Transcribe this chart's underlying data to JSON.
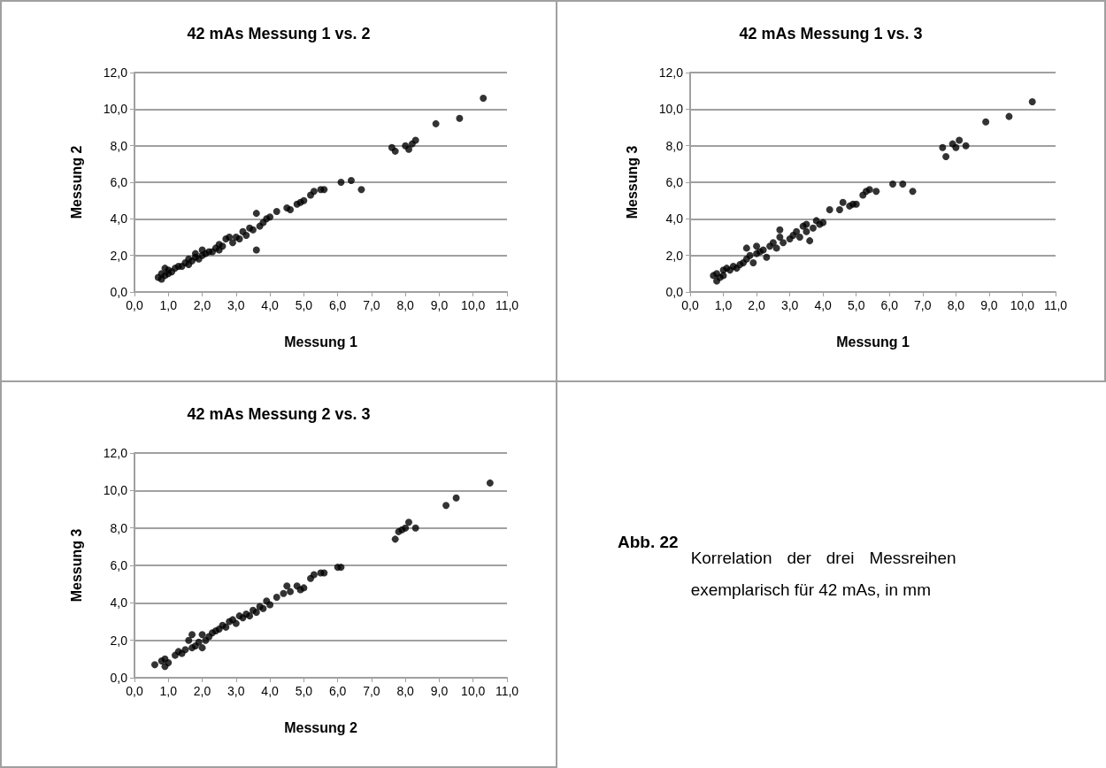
{
  "chart_data": [
    {
      "type": "scatter",
      "title": "42 mAs Messung 1 vs. 2",
      "xlabel": "Messung 1",
      "ylabel": "Messung 2",
      "marker": "circle",
      "grid": "y",
      "xlim": [
        0,
        11
      ],
      "xticks": [
        {
          "value": 0,
          "label": "0,0"
        },
        {
          "value": 1,
          "label": "1,0"
        },
        {
          "value": 2,
          "label": "2,0"
        },
        {
          "value": 3,
          "label": "3,0"
        },
        {
          "value": 4,
          "label": "4,0"
        },
        {
          "value": 5,
          "label": "5,0"
        },
        {
          "value": 6,
          "label": "6,0"
        },
        {
          "value": 7,
          "label": "7,0"
        },
        {
          "value": 8,
          "label": "8,0"
        },
        {
          "value": 9,
          "label": "9,0"
        },
        {
          "value": 10,
          "label": "10,0"
        },
        {
          "value": 11,
          "label": "11,0"
        }
      ],
      "ylim": [
        0,
        12
      ],
      "yticks": [
        {
          "value": 0,
          "label": "0,0"
        },
        {
          "value": 2,
          "label": "2,0"
        },
        {
          "value": 4,
          "label": "4,0"
        },
        {
          "value": 6,
          "label": "6,0"
        },
        {
          "value": 8,
          "label": "8,0"
        },
        {
          "value": 10,
          "label": "10,0"
        },
        {
          "value": 12,
          "label": "12,0"
        }
      ],
      "series": [
        {
          "color": "#000000",
          "x": [
            0.7,
            0.8,
            0.8,
            0.9,
            0.9,
            1.0,
            1.0,
            1.1,
            1.2,
            1.3,
            1.4,
            1.5,
            1.6,
            1.6,
            1.7,
            1.8,
            1.8,
            1.9,
            2.0,
            2.0,
            2.1,
            2.2,
            2.3,
            2.4,
            2.5,
            2.5,
            2.6,
            2.7,
            2.8,
            2.9,
            3.0,
            3.1,
            3.2,
            3.3,
            3.4,
            3.5,
            3.6,
            3.6,
            3.7,
            3.8,
            3.9,
            4.0,
            4.2,
            4.5,
            4.6,
            4.8,
            4.9,
            5.0,
            5.2,
            5.3,
            5.5,
            5.6,
            6.1,
            6.4,
            6.7,
            7.6,
            7.7,
            8.0,
            8.1,
            8.2,
            8.3,
            8.9,
            9.6,
            10.3
          ],
          "values": [
            0.8,
            0.7,
            1.0,
            0.9,
            1.3,
            1.0,
            1.2,
            1.1,
            1.3,
            1.4,
            1.4,
            1.6,
            1.5,
            1.8,
            1.7,
            1.9,
            2.1,
            1.8,
            2.0,
            2.3,
            2.1,
            2.2,
            2.2,
            2.4,
            2.3,
            2.6,
            2.5,
            2.9,
            3.0,
            2.7,
            3.0,
            2.9,
            3.3,
            3.1,
            3.5,
            3.4,
            2.3,
            4.3,
            3.6,
            3.8,
            4.0,
            4.1,
            4.4,
            4.6,
            4.5,
            4.8,
            4.9,
            5.0,
            5.3,
            5.5,
            5.6,
            5.6,
            6.0,
            6.1,
            5.6,
            7.9,
            7.7,
            8.0,
            7.8,
            8.1,
            8.3,
            9.2,
            9.5,
            10.6
          ]
        }
      ]
    },
    {
      "type": "scatter",
      "title": "42 mAs Messung 1 vs. 3",
      "xlabel": "Messung 1",
      "ylabel": "Messung 3",
      "marker": "circle",
      "grid": "y",
      "xlim": [
        0,
        11
      ],
      "xticks": [
        {
          "value": 0,
          "label": "0,0"
        },
        {
          "value": 1,
          "label": "1,0"
        },
        {
          "value": 2,
          "label": "2,0"
        },
        {
          "value": 3,
          "label": "3,0"
        },
        {
          "value": 4,
          "label": "4,0"
        },
        {
          "value": 5,
          "label": "5,0"
        },
        {
          "value": 6,
          "label": "6,0"
        },
        {
          "value": 7,
          "label": "7,0"
        },
        {
          "value": 8,
          "label": "8,0"
        },
        {
          "value": 9,
          "label": "9,0"
        },
        {
          "value": 10,
          "label": "10,0"
        },
        {
          "value": 11,
          "label": "11,0"
        }
      ],
      "ylim": [
        0,
        12
      ],
      "yticks": [
        {
          "value": 0,
          "label": "0,0"
        },
        {
          "value": 2,
          "label": "2,0"
        },
        {
          "value": 4,
          "label": "4,0"
        },
        {
          "value": 6,
          "label": "6,0"
        },
        {
          "value": 8,
          "label": "8,0"
        },
        {
          "value": 10,
          "label": "10,0"
        },
        {
          "value": 12,
          "label": "12,0"
        }
      ],
      "series": [
        {
          "color": "#000000",
          "x": [
            0.7,
            0.8,
            0.8,
            0.9,
            1.0,
            1.0,
            1.1,
            1.2,
            1.3,
            1.4,
            1.5,
            1.6,
            1.7,
            1.7,
            1.8,
            1.9,
            2.0,
            2.0,
            2.1,
            2.2,
            2.3,
            2.4,
            2.5,
            2.6,
            2.7,
            2.7,
            2.8,
            3.0,
            3.1,
            3.2,
            3.3,
            3.4,
            3.5,
            3.5,
            3.6,
            3.7,
            3.8,
            3.9,
            4.0,
            4.2,
            4.5,
            4.6,
            4.8,
            4.9,
            5.0,
            5.2,
            5.3,
            5.4,
            5.6,
            6.1,
            6.4,
            6.7,
            7.6,
            7.7,
            7.9,
            8.0,
            8.1,
            8.3,
            8.9,
            9.6,
            10.3
          ],
          "values": [
            0.9,
            0.6,
            1.0,
            0.8,
            1.2,
            0.9,
            1.3,
            1.2,
            1.4,
            1.3,
            1.5,
            1.6,
            2.4,
            1.8,
            2.0,
            1.6,
            2.1,
            2.5,
            2.2,
            2.3,
            1.9,
            2.5,
            2.7,
            2.4,
            3.0,
            3.4,
            2.7,
            2.9,
            3.1,
            3.3,
            3.0,
            3.6,
            3.3,
            3.7,
            2.8,
            3.5,
            3.9,
            3.7,
            3.8,
            4.5,
            4.5,
            4.9,
            4.7,
            4.8,
            4.8,
            5.3,
            5.5,
            5.6,
            5.5,
            5.9,
            5.9,
            5.5,
            7.9,
            7.4,
            8.1,
            7.9,
            8.3,
            8.0,
            9.3,
            9.6,
            10.4
          ]
        }
      ]
    },
    {
      "type": "scatter",
      "title": "42 mAs Messung 2 vs. 3",
      "xlabel": "Messung 2",
      "ylabel": "Messung 3",
      "marker": "circle",
      "grid": "y",
      "xlim": [
        0,
        11
      ],
      "xticks": [
        {
          "value": 0,
          "label": "0,0"
        },
        {
          "value": 1,
          "label": "1,0"
        },
        {
          "value": 2,
          "label": "2,0"
        },
        {
          "value": 3,
          "label": "3,0"
        },
        {
          "value": 4,
          "label": "4,0"
        },
        {
          "value": 5,
          "label": "5,0"
        },
        {
          "value": 6,
          "label": "6,0"
        },
        {
          "value": 7,
          "label": "7,0"
        },
        {
          "value": 8,
          "label": "8,0"
        },
        {
          "value": 9,
          "label": "9,0"
        },
        {
          "value": 10,
          "label": "10,0"
        },
        {
          "value": 11,
          "label": "11,0"
        }
      ],
      "ylim": [
        0,
        12
      ],
      "yticks": [
        {
          "value": 0,
          "label": "0,0"
        },
        {
          "value": 2,
          "label": "2,0"
        },
        {
          "value": 4,
          "label": "4,0"
        },
        {
          "value": 6,
          "label": "6,0"
        },
        {
          "value": 8,
          "label": "8,0"
        },
        {
          "value": 10,
          "label": "10,0"
        },
        {
          "value": 12,
          "label": "12,0"
        }
      ],
      "series": [
        {
          "color": "#000000",
          "x": [
            0.6,
            0.8,
            0.9,
            0.9,
            1.0,
            1.2,
            1.3,
            1.4,
            1.5,
            1.6,
            1.7,
            1.7,
            1.8,
            1.9,
            2.0,
            2.0,
            2.1,
            2.2,
            2.3,
            2.4,
            2.5,
            2.6,
            2.7,
            2.8,
            2.9,
            3.0,
            3.1,
            3.2,
            3.3,
            3.4,
            3.5,
            3.6,
            3.7,
            3.8,
            3.9,
            4.0,
            4.2,
            4.4,
            4.5,
            4.6,
            4.8,
            4.9,
            5.0,
            5.2,
            5.3,
            5.5,
            5.6,
            6.0,
            6.1,
            7.7,
            7.8,
            7.9,
            8.0,
            8.1,
            8.3,
            9.2,
            9.5,
            10.5
          ],
          "values": [
            0.7,
            0.9,
            0.6,
            1.0,
            0.8,
            1.2,
            1.4,
            1.3,
            1.5,
            2.0,
            1.6,
            2.3,
            1.7,
            1.9,
            1.6,
            2.3,
            2.0,
            2.2,
            2.4,
            2.5,
            2.6,
            2.8,
            2.7,
            3.0,
            3.1,
            2.9,
            3.3,
            3.2,
            3.4,
            3.3,
            3.6,
            3.5,
            3.8,
            3.7,
            4.1,
            3.9,
            4.3,
            4.5,
            4.9,
            4.6,
            4.9,
            4.7,
            4.8,
            5.3,
            5.5,
            5.6,
            5.6,
            5.9,
            5.9,
            7.4,
            7.8,
            7.9,
            8.0,
            8.3,
            8.0,
            9.2,
            9.6,
            10.4
          ]
        }
      ]
    },
    {
      "type": "other",
      "annotations": [
        "Abb. 22",
        "Korrelation der drei Messreihen exemplarisch für 42 mAs, in mm"
      ]
    }
  ]
}
